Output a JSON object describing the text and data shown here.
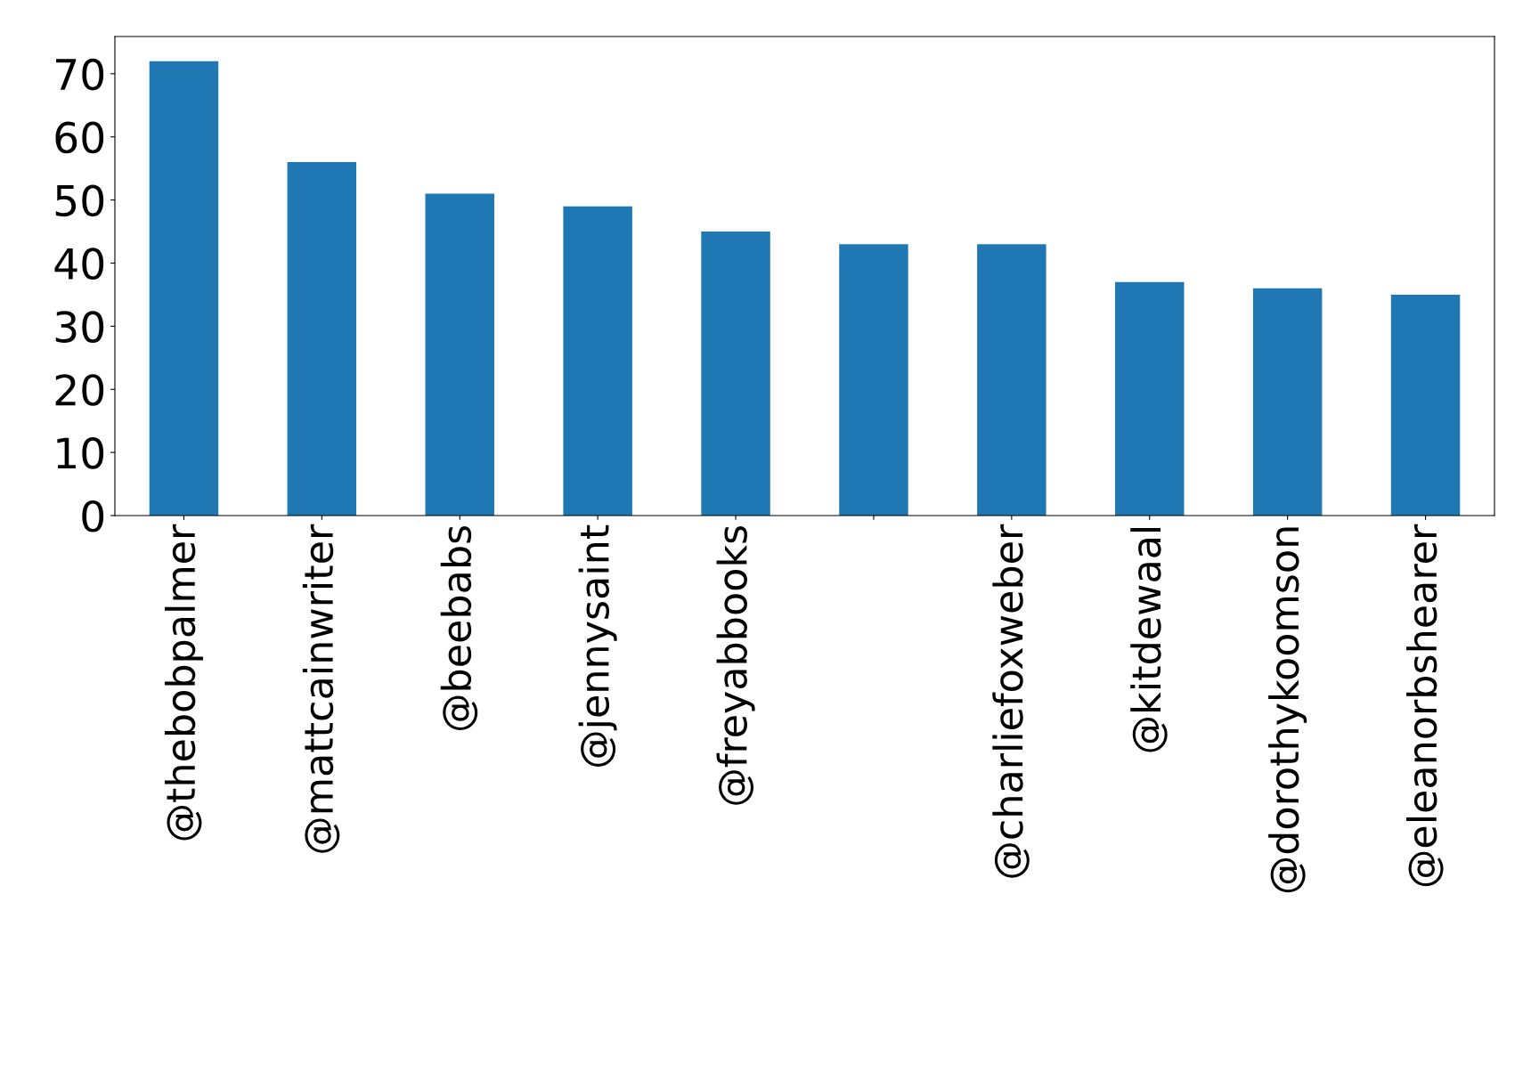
{
  "chart_data": {
    "type": "bar",
    "categories": [
      "@thebobpalmer",
      "@mattcainwriter",
      "@beebabs",
      "@jennysaint",
      "@freyabbooks",
      null,
      "@charliefoxweber",
      "@kitdewaal",
      "@dorothykoomson",
      "@eleanorbshearer"
    ],
    "values": [
      72,
      56,
      51,
      49,
      45,
      43,
      43,
      37,
      36,
      35
    ],
    "color": "#1f77b4",
    "ylim": [
      0,
      75.9
    ],
    "yticks": [
      0,
      10,
      20,
      30,
      40,
      50,
      60,
      70
    ],
    "grid": false,
    "legend": false
  }
}
